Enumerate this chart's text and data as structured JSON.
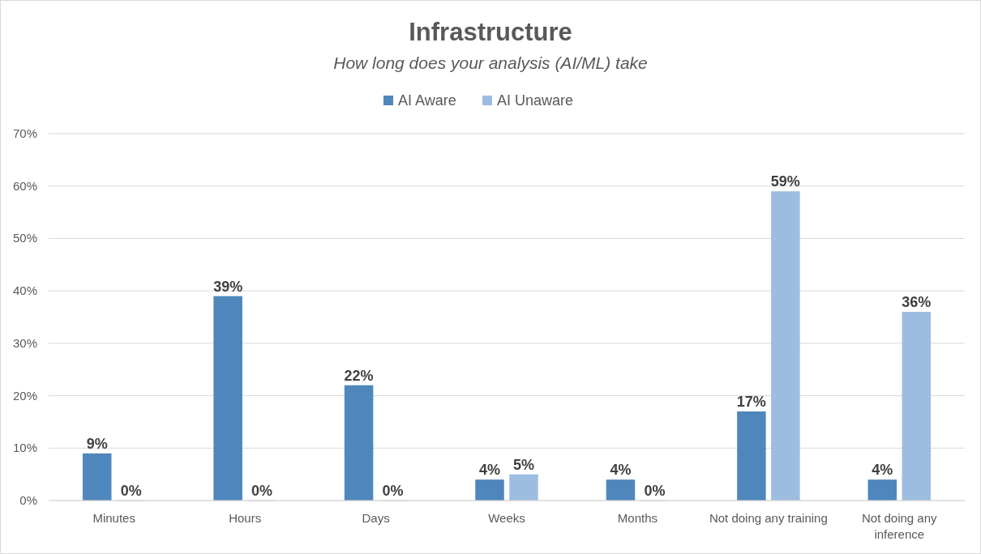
{
  "chart_data": {
    "type": "bar",
    "title": "Infrastructure",
    "subtitle": "How long does your analysis (AI/ML) take",
    "categories": [
      "Minutes",
      "Hours",
      "Days",
      "Weeks",
      "Months",
      "Not doing any training",
      "Not doing any inference"
    ],
    "series": [
      {
        "name": "AI Aware",
        "color": "#4f87bd",
        "values": [
          9,
          39,
          22,
          4,
          4,
          17,
          4
        ],
        "value_labels": [
          "9%",
          "39%",
          "22%",
          "4%",
          "4%",
          "17%",
          "4%"
        ]
      },
      {
        "name": "AI Unaware",
        "color": "#9dbde0",
        "values": [
          0,
          0,
          0,
          5,
          0,
          59,
          36
        ],
        "value_labels": [
          "0%",
          "0%",
          "0%",
          "5%",
          "0%",
          "59%",
          "36%"
        ]
      }
    ],
    "ylim": [
      0,
      70
    ],
    "yticks": [
      {
        "value": 0,
        "label": "0%"
      },
      {
        "value": 10,
        "label": "10%"
      },
      {
        "value": 20,
        "label": "20%"
      },
      {
        "value": 30,
        "label": "30%"
      },
      {
        "value": 40,
        "label": "40%"
      },
      {
        "value": 50,
        "label": "50%"
      },
      {
        "value": 60,
        "label": "60%"
      },
      {
        "value": 70,
        "label": "70%"
      }
    ],
    "grid": "y",
    "legend": "top"
  }
}
